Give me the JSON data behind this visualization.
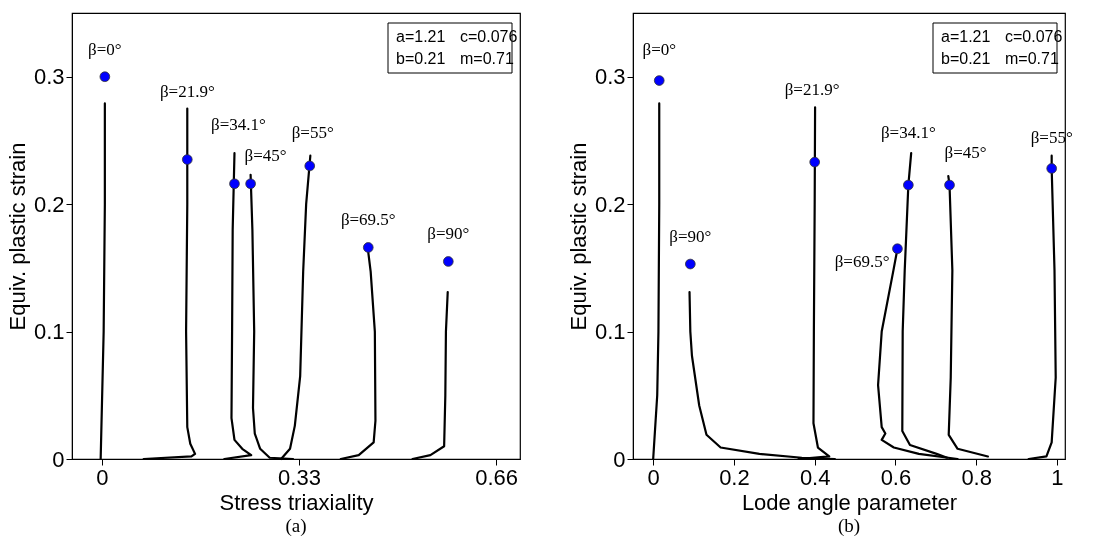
{
  "chart_data": [
    {
      "type": "line",
      "title": "(a)",
      "xlabel": "Stress triaxiality",
      "ylabel": "Equiv. plastic strain",
      "xlim": [
        -0.05,
        0.7
      ],
      "ylim": [
        0,
        0.35
      ],
      "xticks": [
        0,
        0.33,
        0.66
      ],
      "yticks": [
        0,
        0.1,
        0.2,
        0.3
      ],
      "series": [
        {
          "type": "line",
          "color": "#000000",
          "x": [
            -0.002,
            0.003,
            0.005,
            0.005
          ],
          "values": [
            0,
            0.1,
            0.2,
            0.279
          ]
        },
        {
          "type": "line",
          "color": "#000000",
          "x": [
            0.07,
            0.15,
            0.156,
            0.148,
            0.143,
            0.141,
            0.143,
            0.143
          ],
          "values": [
            0,
            0.002,
            0.004,
            0.012,
            0.025,
            0.1,
            0.2,
            0.275
          ]
        },
        {
          "type": "line",
          "color": "#000000",
          "x": [
            0.205,
            0.25,
            0.235,
            0.222,
            0.217,
            0.218,
            0.219,
            0.222
          ],
          "values": [
            0,
            0.003,
            0.008,
            0.015,
            0.032,
            0.1,
            0.18,
            0.24
          ]
        },
        {
          "type": "line",
          "color": "#000000",
          "x": [
            0.32,
            0.281,
            0.265,
            0.256,
            0.253,
            0.255,
            0.252,
            0.249
          ],
          "values": [
            0,
            0.001,
            0.008,
            0.02,
            0.04,
            0.1,
            0.18,
            0.223
          ]
        },
        {
          "type": "line",
          "color": "#000000",
          "x": [
            0.3,
            0.315,
            0.323,
            0.332,
            0.337,
            0.342,
            0.349
          ],
          "values": [
            0,
            0.008,
            0.026,
            0.065,
            0.147,
            0.2,
            0.238
          ]
        },
        {
          "type": "line",
          "color": "#000000",
          "x": [
            0.4,
            0.43,
            0.455,
            0.458,
            0.457,
            0.45,
            0.445
          ],
          "values": [
            0,
            0.003,
            0.013,
            0.03,
            0.1,
            0.147,
            0.166
          ]
        },
        {
          "type": "line",
          "color": "#000000",
          "x": [
            0.52,
            0.55,
            0.573,
            0.575,
            0.576,
            0.579
          ],
          "values": [
            0,
            0.003,
            0.01,
            0.05,
            0.1,
            0.131
          ]
        },
        {
          "type": "scatter",
          "marker": "circle",
          "color": "#0000ff",
          "x": [
            0.005,
            0.143,
            0.222,
            0.249,
            0.348,
            0.446,
            0.58
          ],
          "values": [
            0.3,
            0.235,
            0.216,
            0.216,
            0.23,
            0.166,
            0.155
          ]
        }
      ],
      "annotations": [
        {
          "text": "β=0°",
          "x": 0.005,
          "y": 0.3
        },
        {
          "text": "β=21.9°",
          "x": 0.143,
          "y": 0.275
        },
        {
          "text": "β=34.1°",
          "x": 0.222,
          "y": 0.216
        },
        {
          "text": "β=45°",
          "x": 0.249,
          "y": 0.216
        },
        {
          "text": "β=55°",
          "x": 0.348,
          "y": 0.23
        },
        {
          "text": "β=69.5°",
          "x": 0.446,
          "y": 0.166
        },
        {
          "text": "β=90°",
          "x": 0.58,
          "y": 0.155
        },
        "a=1.21",
        "c=0.076",
        "b=0.21",
        "m=0.71"
      ]
    },
    {
      "type": "line",
      "title": "(b)",
      "xlabel": "Lode angle parameter",
      "ylabel": "Equiv. plastic strain",
      "xlim": [
        -0.05,
        1.02
      ],
      "ylim": [
        0,
        0.35
      ],
      "xticks": [
        0,
        0.2,
        0.4,
        0.6,
        0.8,
        1
      ],
      "yticks": [
        0,
        0.1,
        0.2,
        0.3
      ],
      "series": [
        {
          "type": "line",
          "color": "#000000",
          "x": [
            0,
            0.01,
            0.013,
            0.015,
            0.015
          ],
          "values": [
            0,
            0.05,
            0.1,
            0.2,
            0.279
          ]
        },
        {
          "type": "line",
          "color": "#000000",
          "x": [
            0.09,
            0.092,
            0.096,
            0.114,
            0.132,
            0.167,
            0.263,
            0.368,
            0.45
          ],
          "values": [
            0.131,
            0.1,
            0.081,
            0.042,
            0.019,
            0.009,
            0.004,
            0.001,
            0
          ]
        },
        {
          "type": "line",
          "color": "#000000",
          "x": [
            0.401,
            0.4,
            0.398,
            0.397,
            0.408,
            0.436,
            0.36
          ],
          "values": [
            0.276,
            0.2,
            0.1,
            0.028,
            0.009,
            0.002,
            0
          ]
        },
        {
          "type": "line",
          "color": "#000000",
          "x": [
            0.605,
            0.595,
            0.566,
            0.557,
            0.566,
            0.575,
            0.566,
            0.596,
            0.658,
            0.754
          ],
          "values": [
            0.165,
            0.148,
            0.1,
            0.058,
            0.025,
            0.02,
            0.015,
            0.009,
            0.004,
            0
          ]
        },
        {
          "type": "line",
          "color": "#000000",
          "x": [
            0.639,
            0.632,
            0.623,
            0.618,
            0.617,
            0.636,
            0.702,
            0.728
          ],
          "values": [
            0.24,
            0.215,
            0.148,
            0.1,
            0.022,
            0.011,
            0.004,
            0.001
          ]
        },
        {
          "type": "line",
          "color": "#000000",
          "x": [
            0.731,
            0.734,
            0.741,
            0.737,
            0.732,
            0.754,
            0.829
          ],
          "values": [
            0.222,
            0.215,
            0.148,
            0.064,
            0.019,
            0.008,
            0.002
          ]
        },
        {
          "type": "line",
          "color": "#000000",
          "x": [
            0.987,
            0.987,
            0.994,
            0.997,
            0.987,
            0.974,
            0.93
          ],
          "values": [
            0.238,
            0.228,
            0.148,
            0.064,
            0.013,
            0.002,
            0
          ]
        },
        {
          "type": "scatter",
          "marker": "circle",
          "color": "#0000ff",
          "x": [
            0.015,
            0.092,
            0.4,
            0.605,
            0.632,
            0.734,
            0.987
          ],
          "values": [
            0.297,
            0.153,
            0.233,
            0.165,
            0.215,
            0.215,
            0.228
          ]
        }
      ],
      "annotations": [
        {
          "text": "β=0°",
          "x": 0.015,
          "y": 0.297
        },
        {
          "text": "β=90°",
          "x": 0.092,
          "y": 0.153
        },
        {
          "text": "β=21.9°",
          "x": 0.401,
          "y": 0.276
        },
        {
          "text": "β=69.5°",
          "x": 0.605,
          "y": 0.165
        },
        {
          "text": "β=34.1°",
          "x": 0.632,
          "y": 0.215
        },
        {
          "text": "β=45°",
          "x": 0.734,
          "y": 0.215
        },
        {
          "text": "β=55°",
          "x": 0.987,
          "y": 0.228
        },
        "a=1.21",
        "c=0.076",
        "b=0.21",
        "m=0.71"
      ]
    }
  ]
}
